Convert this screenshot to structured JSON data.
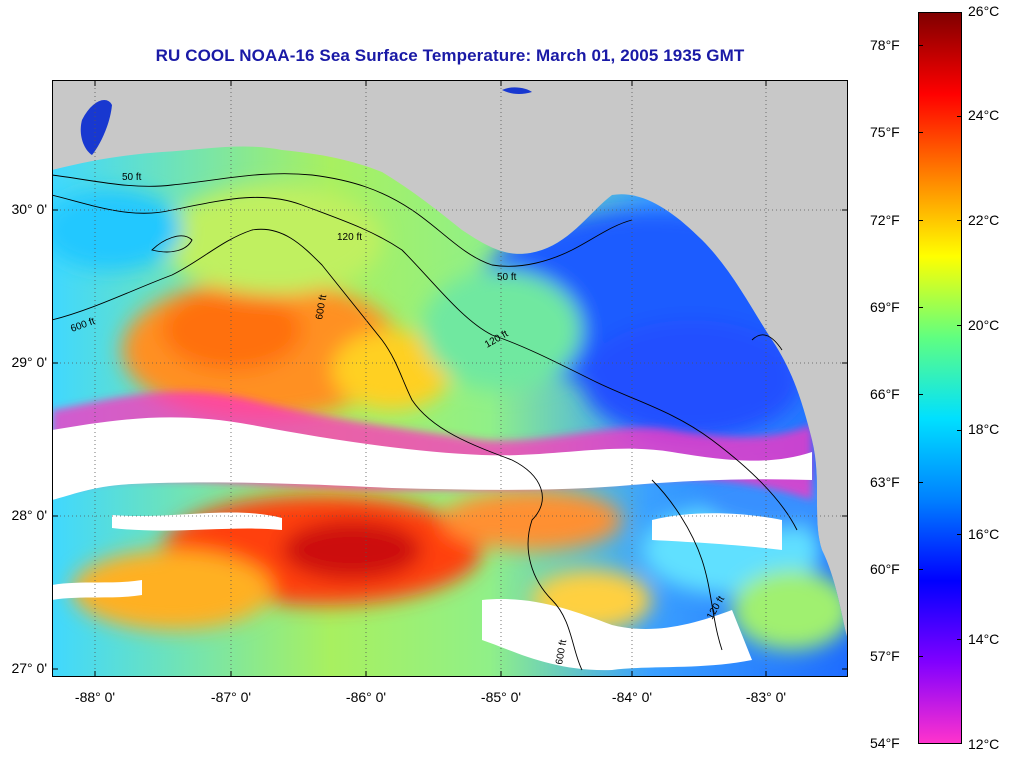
{
  "title": "RU COOL  NOAA-16  Sea Surface Temperature:  March 01, 2005 1935 GMT",
  "map": {
    "lat_labels": [
      "30° 0'",
      "29° 0'",
      "28° 0'",
      "27° 0'"
    ],
    "lon_labels": [
      "-88° 0'",
      "-87° 0'",
      "-86° 0'",
      "-85° 0'",
      "-84° 0'",
      "-83° 0'"
    ],
    "contour_labels": [
      "50 ft",
      "120 ft",
      "600 ft",
      "120 ft",
      "600 ft",
      "50 ft",
      "120 ft",
      "600 ft"
    ],
    "land_color": "#c8c8c8",
    "cloud_color": "#ffffff"
  },
  "colorbar": {
    "fahrenheit_labels": [
      "78°F",
      "75°F",
      "72°F",
      "69°F",
      "66°F",
      "63°F",
      "60°F",
      "57°F",
      "54°F"
    ],
    "celsius_labels": [
      "26°C",
      "24°C",
      "22°C",
      "20°C",
      "18°C",
      "16°C",
      "14°C",
      "12°C"
    ],
    "celsius_range": [
      12,
      26
    ],
    "colors": [
      "#ff33cc",
      "#8000ff",
      "#0000ff",
      "#0080ff",
      "#00e0ff",
      "#60ff80",
      "#ffff00",
      "#ff8000",
      "#ff0000",
      "#800000"
    ]
  }
}
